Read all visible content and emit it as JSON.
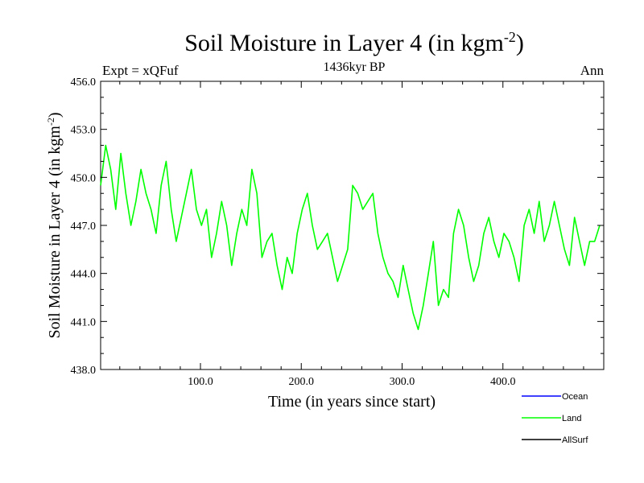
{
  "chart_data": {
    "type": "line",
    "title_main": "Soil Moisture in Layer 4 (in kgm",
    "title_sup": "-2",
    "title_close": ")",
    "subtitle": "1436kyr BP",
    "left_label": "Expt = xQFuf",
    "right_label": "Ann",
    "xlabel": "Time (in years since start)",
    "ylabel_main": "Soil Moisture in Layer 4 (in kgm",
    "ylabel_sup": "-2",
    "ylabel_close": ")",
    "xlim": [
      1,
      500
    ],
    "ylim": [
      438.0,
      456.0
    ],
    "x_ticks": [
      100,
      200,
      300,
      400
    ],
    "x_tick_labels": [
      "100.0",
      "200.0",
      "300.0",
      "400.0"
    ],
    "y_ticks": [
      438,
      441,
      444,
      447,
      450,
      453,
      456
    ],
    "y_tick_labels": [
      "438.0",
      "441.0",
      "444.0",
      "447.0",
      "450.0",
      "453.0",
      "456.0"
    ],
    "legend": [
      {
        "name": "Ocean",
        "color": "#0000ff"
      },
      {
        "name": "Land",
        "color": "#00ff00"
      },
      {
        "name": "AllSurf",
        "color": "#000000"
      }
    ],
    "series": [
      {
        "name": "Land",
        "color": "#00ff00",
        "x_start": 1,
        "x_step": 5,
        "values": [
          449.5,
          452.0,
          450.5,
          448.0,
          451.5,
          449.0,
          447.0,
          448.5,
          450.5,
          449.0,
          448.0,
          446.5,
          449.5,
          451.0,
          448.0,
          446.0,
          447.5,
          449.0,
          450.5,
          448.0,
          447.0,
          448.0,
          445.0,
          446.5,
          448.5,
          447.0,
          444.5,
          446.5,
          448.0,
          447.0,
          450.5,
          449.0,
          445.0,
          446.0,
          446.5,
          444.5,
          443.0,
          445.0,
          444.0,
          446.5,
          448.0,
          449.0,
          447.0,
          445.5,
          446.0,
          446.5,
          445.0,
          443.5,
          444.5,
          445.5,
          449.5,
          449.0,
          448.0,
          448.5,
          449.0,
          446.5,
          445.0,
          444.0,
          443.5,
          442.5,
          444.5,
          443.0,
          441.5,
          440.5,
          442.0,
          444.0,
          446.0,
          442.0,
          443.0,
          442.5,
          446.5,
          448.0,
          447.0,
          445.0,
          443.5,
          444.5,
          446.5,
          447.5,
          446.0,
          445.0,
          446.5,
          446.0,
          445.0,
          443.5,
          447.0,
          448.0,
          446.5,
          448.5,
          446.0,
          447.0,
          448.5,
          447.0,
          445.5,
          444.5,
          447.5,
          446.0,
          444.5,
          446.0,
          446.0,
          447.0
        ]
      }
    ]
  }
}
